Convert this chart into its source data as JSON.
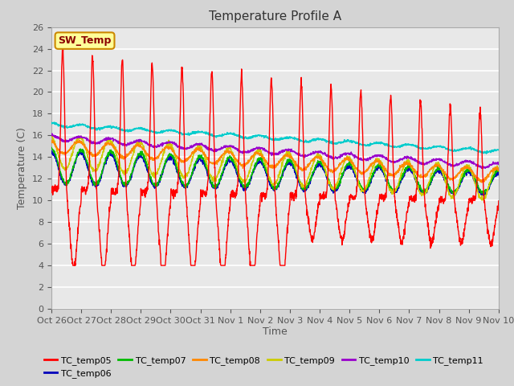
{
  "title": "Temperature Profile A",
  "xlabel": "Time",
  "ylabel": "Temperature (C)",
  "ylim": [
    0,
    26
  ],
  "yticks": [
    0,
    2,
    4,
    6,
    8,
    10,
    12,
    14,
    16,
    18,
    20,
    22,
    24,
    26
  ],
  "xtick_labels": [
    "Oct 26",
    "Oct 27",
    "Oct 28",
    "Oct 29",
    "Oct 30",
    "Oct 31",
    "Nov 1",
    "Nov 2",
    "Nov 3",
    "Nov 4",
    "Nov 5",
    "Nov 6",
    "Nov 7",
    "Nov 8",
    "Nov 9",
    "Nov 10"
  ],
  "sw_temp_annotation": "SW_Temp",
  "series_colors": {
    "TC_temp05": "#ff0000",
    "TC_temp06": "#0000bb",
    "TC_temp07": "#00bb00",
    "TC_temp08": "#ff8800",
    "TC_temp09": "#cccc00",
    "TC_temp10": "#9900cc",
    "TC_temp11": "#00cccc"
  },
  "fig_bg_color": "#d4d4d4",
  "plot_bg_color": "#e8e8e8",
  "grid_color": "#ffffff",
  "title_fontsize": 11,
  "axis_fontsize": 9,
  "tick_fontsize": 8,
  "n_days": 15,
  "n_points": 2000
}
